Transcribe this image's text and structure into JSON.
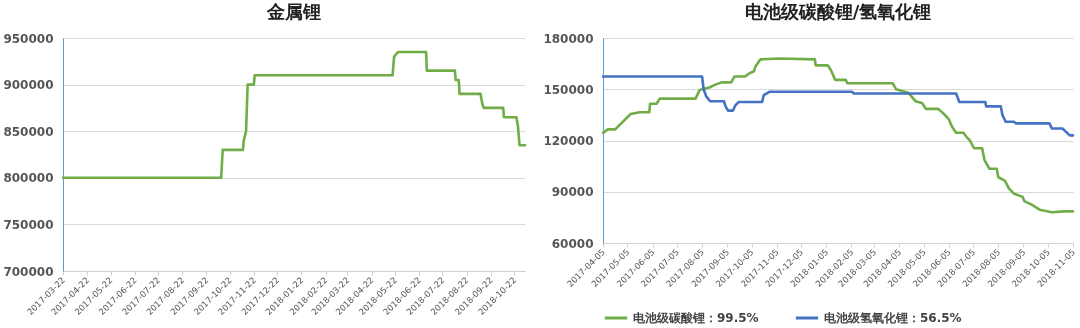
{
  "chart_data": [
    {
      "type": "line",
      "title": "金属锂",
      "xlim": [
        "2017-03-22",
        "2018-11-05"
      ],
      "xticks": [
        "2017-03-22",
        "2017-04-22",
        "2017-05-22",
        "2017-06-22",
        "2017-07-22",
        "2017-08-22",
        "2017-09-22",
        "2017-10-22",
        "2017-11-22",
        "2017-12-22",
        "2018-01-22",
        "2018-02-22",
        "2018-03-22",
        "2018-04-22",
        "2018-05-22",
        "2018-06-22",
        "2018-07-22",
        "2018-08-22",
        "2018-09-22",
        "2018-10-22"
      ],
      "ylim": [
        700000,
        950000
      ],
      "yticks": [
        700000,
        750000,
        800000,
        850000,
        900000,
        950000
      ],
      "grid": "y",
      "legend": false,
      "series": [
        {
          "color": "#70ad47",
          "x": [
            "2017-03-22",
            "2017-10-11",
            "2017-10-13",
            "2017-11-08",
            "2017-11-09",
            "2017-11-12",
            "2017-11-14",
            "2017-11-22",
            "2017-11-23",
            "2018-05-19",
            "2018-05-21",
            "2018-05-26",
            "2018-07-01",
            "2018-07-02",
            "2018-08-07",
            "2018-08-08",
            "2018-08-12",
            "2018-08-13",
            "2018-09-09",
            "2018-09-11",
            "2018-09-13",
            "2018-10-08",
            "2018-10-09",
            "2018-10-25",
            "2018-10-27",
            "2018-10-29",
            "2018-11-05"
          ],
          "values": [
            800000,
            800000,
            830000,
            830000,
            840000,
            850000,
            900000,
            900000,
            910000,
            910000,
            930000,
            935000,
            935000,
            915000,
            915000,
            905000,
            905000,
            890000,
            890000,
            880000,
            875000,
            875000,
            865000,
            865000,
            855000,
            835000,
            835000
          ]
        }
      ]
    },
    {
      "type": "line",
      "title": "电池级碳酸锂/氢氧化锂",
      "xlim": [
        "2017-04-05",
        "2018-11-05"
      ],
      "xticks": [
        "2017-04-05",
        "2017-05-05",
        "2017-06-05",
        "2017-07-05",
        "2017-08-05",
        "2017-09-05",
        "2017-10-05",
        "2017-11-05",
        "2017-12-05",
        "2018-01-05",
        "2018-02-05",
        "2018-03-05",
        "2018-04-05",
        "2018-05-05",
        "2018-06-05",
        "2018-07-05",
        "2018-08-05",
        "2018-09-05",
        "2018-10-05",
        "2018-11-05"
      ],
      "ylim": [
        60000,
        180000
      ],
      "yticks": [
        60000,
        90000,
        120000,
        150000,
        180000
      ],
      "grid": "y",
      "legend": "bottom",
      "series": [
        {
          "name": "电池级碳酸锂：99.5%",
          "color": "#70ad47",
          "x": [
            "2017-04-05",
            "2017-04-11",
            "2017-04-20",
            "2017-05-09",
            "2017-05-20",
            "2017-06-01",
            "2017-06-02",
            "2017-06-10",
            "2017-06-14",
            "2017-07-28",
            "2017-08-02",
            "2017-08-14",
            "2017-08-23",
            "2017-08-29",
            "2017-09-10",
            "2017-09-14",
            "2017-09-27",
            "2017-10-03",
            "2017-10-08",
            "2017-10-10",
            "2017-10-16",
            "2017-11-10",
            "2017-12-22",
            "2017-12-23",
            "2018-01-07",
            "2018-01-11",
            "2018-01-16",
            "2018-01-29",
            "2018-01-31",
            "2018-03-28",
            "2018-04-01",
            "2018-04-16",
            "2018-04-25",
            "2018-05-03",
            "2018-05-08",
            "2018-05-23",
            "2018-05-29",
            "2018-06-05",
            "2018-06-09",
            "2018-06-14",
            "2018-06-23",
            "2018-06-27",
            "2018-07-01",
            "2018-07-06",
            "2018-07-16",
            "2018-07-19",
            "2018-07-25",
            "2018-08-03",
            "2018-08-05",
            "2018-08-13",
            "2018-08-18",
            "2018-08-24",
            "2018-09-04",
            "2018-09-06",
            "2018-09-15",
            "2018-09-25",
            "2018-10-10",
            "2018-10-25",
            "2018-11-05"
          ],
          "values": [
            124500,
            126500,
            126500,
            135500,
            136500,
            136500,
            141500,
            141500,
            144500,
            144500,
            149500,
            151000,
            153000,
            154000,
            154000,
            157500,
            157500,
            159500,
            160500,
            163500,
            167500,
            168000,
            167500,
            164000,
            164000,
            161000,
            155500,
            155500,
            153500,
            153500,
            150000,
            148000,
            143000,
            142000,
            138500,
            138500,
            136000,
            132500,
            128000,
            124500,
            124500,
            122000,
            120000,
            115500,
            115500,
            108500,
            103500,
            103500,
            98500,
            96500,
            92000,
            89000,
            87000,
            84500,
            82500,
            79500,
            78000,
            78500,
            78500
          ]
        },
        {
          "name": "电池级氢氧化锂：56.5%",
          "color": "#4472c4",
          "x": [
            "2017-04-05",
            "2017-08-05",
            "2017-08-07",
            "2017-08-10",
            "2017-08-15",
            "2017-09-01",
            "2017-09-03",
            "2017-09-06",
            "2017-09-12",
            "2017-09-15",
            "2017-09-19",
            "2017-10-18",
            "2017-10-20",
            "2017-10-27",
            "2018-02-06",
            "2018-02-08",
            "2018-06-14",
            "2018-06-18",
            "2018-07-20",
            "2018-07-21",
            "2018-08-08",
            "2018-08-10",
            "2018-08-14",
            "2018-08-24",
            "2018-08-27",
            "2018-10-07",
            "2018-10-10",
            "2018-10-23",
            "2018-11-01",
            "2018-11-05"
          ],
          "values": [
            157500,
            157500,
            150000,
            146000,
            143000,
            143000,
            140000,
            137500,
            137500,
            140500,
            142500,
            142500,
            146500,
            148500,
            148500,
            147500,
            147500,
            142500,
            142500,
            140000,
            140000,
            135000,
            131000,
            131000,
            130000,
            130000,
            127000,
            127000,
            123000,
            123000
          ]
        }
      ]
    }
  ]
}
